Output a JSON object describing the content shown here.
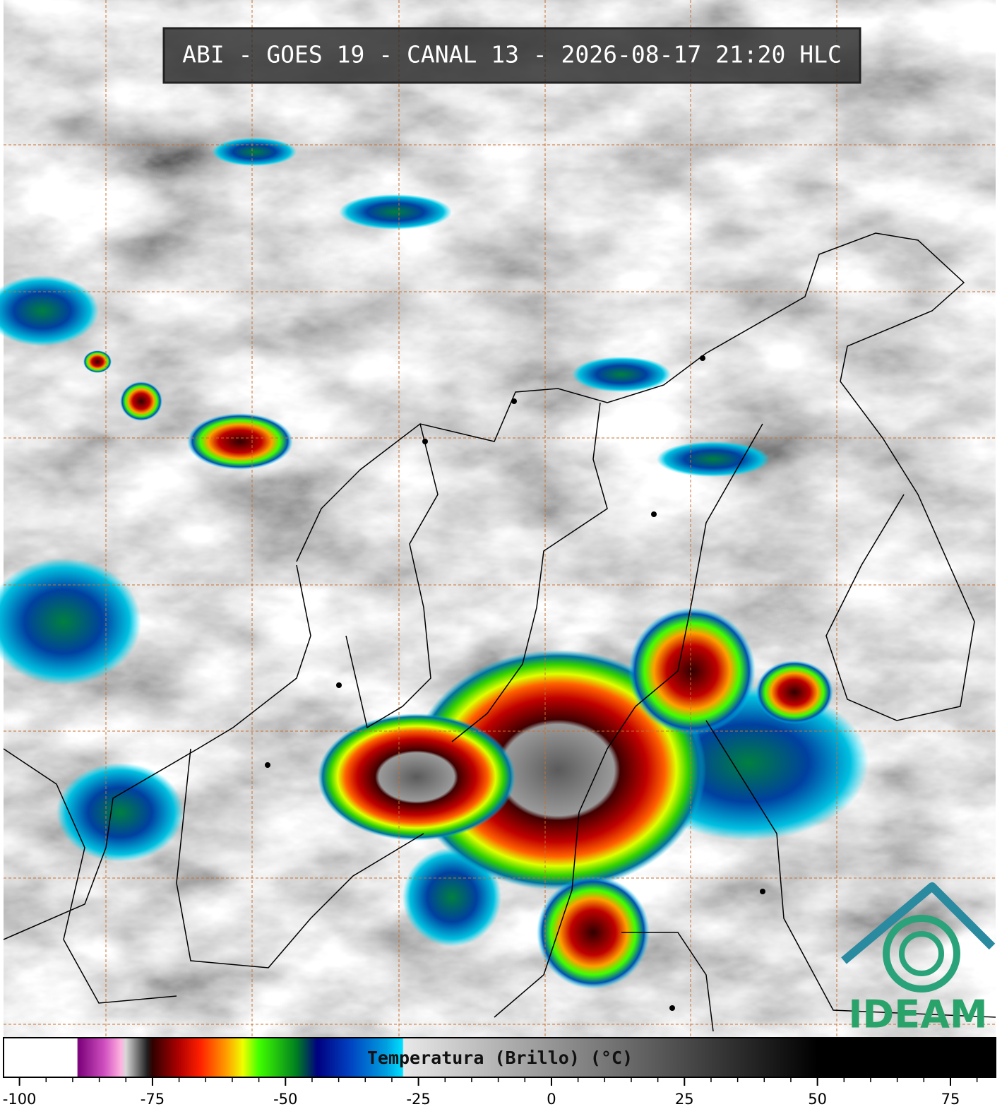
{
  "title": "ABI - GOES 19 - CANAL 13 - 2026-08-17 21:20 HLC",
  "logo": "IDEAM",
  "colorbar": {
    "label": "Temperatura (Brillo) (°C)",
    "xlim": [
      -103,
      83.5
    ],
    "xticks": [
      -100,
      -75,
      -50,
      -25,
      0,
      25,
      50,
      75
    ],
    "xminorticks": [
      -95,
      -90,
      -85,
      -80,
      -70,
      -65,
      -60,
      -55,
      -45,
      -40,
      -35,
      -30,
      -20,
      -15,
      -10,
      -5,
      5,
      10,
      15,
      20,
      30,
      35,
      40,
      45,
      55,
      60,
      65,
      70,
      80
    ],
    "colors": [
      {
        "value": -103,
        "color": "#ffffff"
      },
      {
        "value": -89.2,
        "color": "#ffffff"
      },
      {
        "value": -89,
        "color": "#7a007a"
      },
      {
        "value": -84,
        "color": "#d050c0"
      },
      {
        "value": -81,
        "color": "#ffb0e0"
      },
      {
        "value": -80,
        "color": "#d8d8d8"
      },
      {
        "value": -76,
        "color": "#202020"
      },
      {
        "value": -75,
        "color": "#300000"
      },
      {
        "value": -70,
        "color": "#b00000"
      },
      {
        "value": -66,
        "color": "#ff2000"
      },
      {
        "value": -61,
        "color": "#ffa000"
      },
      {
        "value": -58,
        "color": "#f0ff00"
      },
      {
        "value": -55,
        "color": "#40ff00"
      },
      {
        "value": -48,
        "color": "#008020"
      },
      {
        "value": -44,
        "color": "#000080"
      },
      {
        "value": -38,
        "color": "#0040c0"
      },
      {
        "value": -31,
        "color": "#00a0e0"
      },
      {
        "value": -28,
        "color": "#00e0ff"
      },
      {
        "value": -27.8,
        "color": "#e8e8e8"
      },
      {
        "value": 50,
        "color": "#000000"
      },
      {
        "value": 83.5,
        "color": "#000000"
      }
    ]
  }
}
